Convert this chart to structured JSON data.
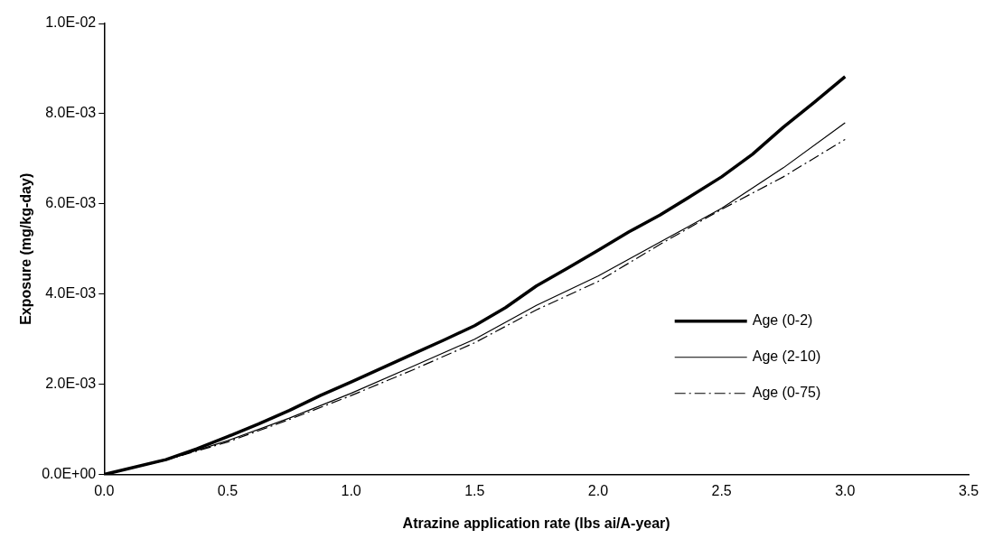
{
  "chart_data": {
    "type": "line",
    "xlabel": "Atrazine application rate (lbs ai/A-year)",
    "ylabel": "Exposure (mg/kg-day)",
    "xlim": [
      0,
      3.5
    ],
    "xticks": [
      {
        "value": 0,
        "label": "0.0"
      },
      {
        "value": 0.5,
        "label": "0.5"
      },
      {
        "value": 1,
        "label": "1.0"
      },
      {
        "value": 1.5,
        "label": "1.5"
      },
      {
        "value": 2,
        "label": "2.0"
      },
      {
        "value": 2.5,
        "label": "2.5"
      },
      {
        "value": 3,
        "label": "3.0"
      },
      {
        "value": 3.5,
        "label": "3.5"
      }
    ],
    "ylim": [
      0,
      0.01
    ],
    "yticks": [
      {
        "value": 0,
        "label": "0.0E+00"
      },
      {
        "value": 0.002,
        "label": "2.0E-03"
      },
      {
        "value": 0.004,
        "label": "4.0E-03"
      },
      {
        "value": 0.006,
        "label": "6.0E-03"
      },
      {
        "value": 0.008,
        "label": "8.0E-03"
      },
      {
        "value": 0.01,
        "label": "1.0E-02"
      }
    ],
    "grid": false,
    "legend": "right",
    "marker": "none",
    "series": [
      {
        "name": "Age (0-2)",
        "color": "#000000",
        "line_style": "solid",
        "x": [
          0,
          0.25,
          0.375,
          0.5,
          0.625,
          0.75,
          0.875,
          1,
          1.125,
          1.25,
          1.375,
          1.5,
          1.625,
          1.75,
          1.875,
          2,
          2.125,
          2.25,
          2.375,
          2.5,
          2.625,
          2.75,
          2.875,
          3
        ],
        "values": [
          0,
          0.00033,
          0.00057,
          0.00084,
          0.00112,
          0.00142,
          0.00175,
          0.00205,
          0.00236,
          0.00267,
          0.00298,
          0.0033,
          0.0037,
          0.00418,
          0.00457,
          0.00497,
          0.00538,
          0.00575,
          0.00617,
          0.0066,
          0.0071,
          0.0077,
          0.00825,
          0.00882
        ]
      },
      {
        "name": "Age (2-10)",
        "color": "#000000",
        "line_style": "solid",
        "x": [
          0,
          0.25,
          0.5,
          0.75,
          1,
          1.25,
          1.5,
          1.75,
          2,
          2.25,
          2.5,
          2.75,
          3
        ],
        "values": [
          0,
          0.00032,
          0.00075,
          0.00125,
          0.0018,
          0.0024,
          0.003,
          0.00375,
          0.0044,
          0.00515,
          0.0059,
          0.0068,
          0.0078
        ]
      },
      {
        "name": "Age (0-75)",
        "color": "#000000",
        "line_style": "dashdot",
        "x": [
          0,
          0.25,
          0.5,
          0.75,
          1,
          1.25,
          1.5,
          1.75,
          2,
          2.25,
          2.5,
          2.75,
          3
        ],
        "values": [
          0,
          0.00032,
          0.00072,
          0.00122,
          0.00175,
          0.00232,
          0.00292,
          0.00365,
          0.00428,
          0.0051,
          0.00588,
          0.0066,
          0.00743
        ]
      }
    ]
  }
}
